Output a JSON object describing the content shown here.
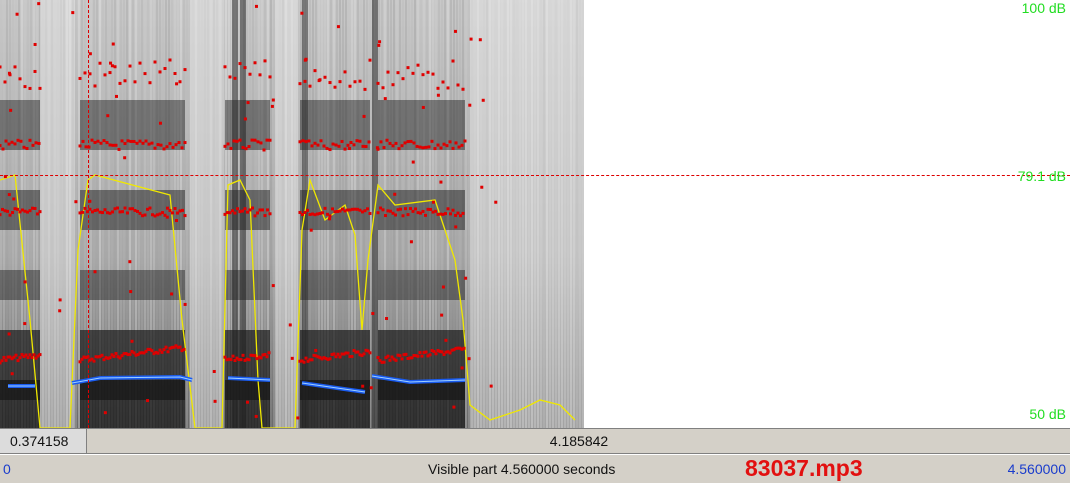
{
  "db_axis": {
    "top": "100 dB",
    "cursor": "79.1 dB",
    "bottom": "50 dB"
  },
  "selection": {
    "before_cursor": "0.374158",
    "after_cursor": "4.185842"
  },
  "status": {
    "start_time": "0",
    "visible_part": "Visible part 4.560000 seconds",
    "file_name": "83037.mp3",
    "end_time": "4.560000"
  },
  "colors": {
    "formant": "#e00000",
    "intensity": "#f0e800",
    "pitch": "#2060f0",
    "db_label": "#22dd22",
    "file_name": "#e21010"
  }
}
